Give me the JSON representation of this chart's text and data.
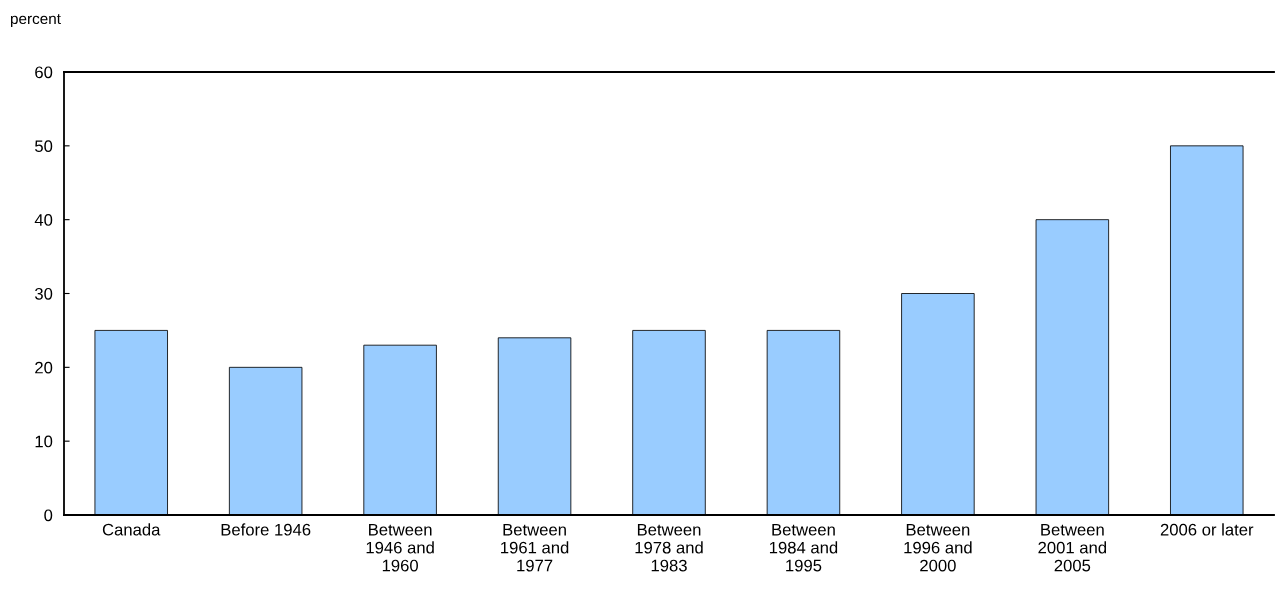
{
  "chart_data": {
    "type": "bar",
    "ylabel": "percent",
    "categories": [
      "Canada",
      "Before 1946",
      "Between\n1946 and\n1960",
      "Between\n1961 and\n1977",
      "Between\n1978 and\n1983",
      "Between\n1984 and\n1995",
      "Between\n1996 and\n2000",
      "Between\n2001 and\n2005",
      "2006 or later"
    ],
    "values": [
      25,
      20,
      23,
      24,
      25,
      25,
      30,
      40,
      50
    ],
    "color": "#99ccff",
    "ylim": [
      0,
      60
    ],
    "yticks": [
      0,
      10,
      20,
      30,
      40,
      50,
      60
    ],
    "grid": false,
    "legend": false
  }
}
